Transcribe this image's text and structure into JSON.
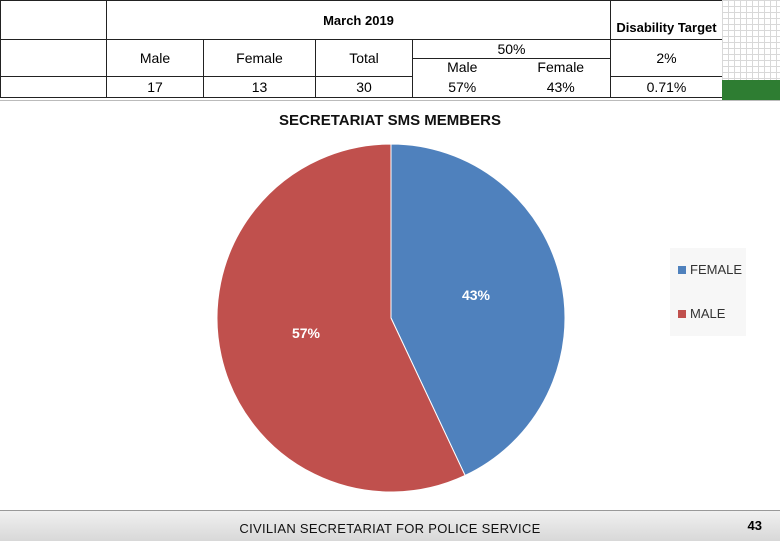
{
  "table": {
    "period": "March 2019",
    "disability_header": "Disability Target",
    "col_male": "Male",
    "col_female": "Female",
    "col_total": "Total",
    "target_pct": "50%",
    "target_male_label": "Male",
    "target_female_label": "Female",
    "disability_pct": "2%",
    "male_count": "17",
    "female_count": "13",
    "total_count": "30",
    "male_pct": "57%",
    "female_pct": "43%",
    "disability_actual": "0.71%"
  },
  "chart_data": {
    "type": "pie",
    "title": "SECRETARIAT SMS MEMBERS",
    "slices": [
      {
        "label": "FEMALE",
        "value": 43,
        "display": "43%",
        "color": "#4f81bd"
      },
      {
        "label": "MALE",
        "value": 57,
        "display": "57%",
        "color": "#c0504d"
      }
    ],
    "legend_position": "right"
  },
  "footer": {
    "org": "CIVILIAN SECRETARIAT FOR POLICE SERVICE",
    "page_number": "43"
  }
}
